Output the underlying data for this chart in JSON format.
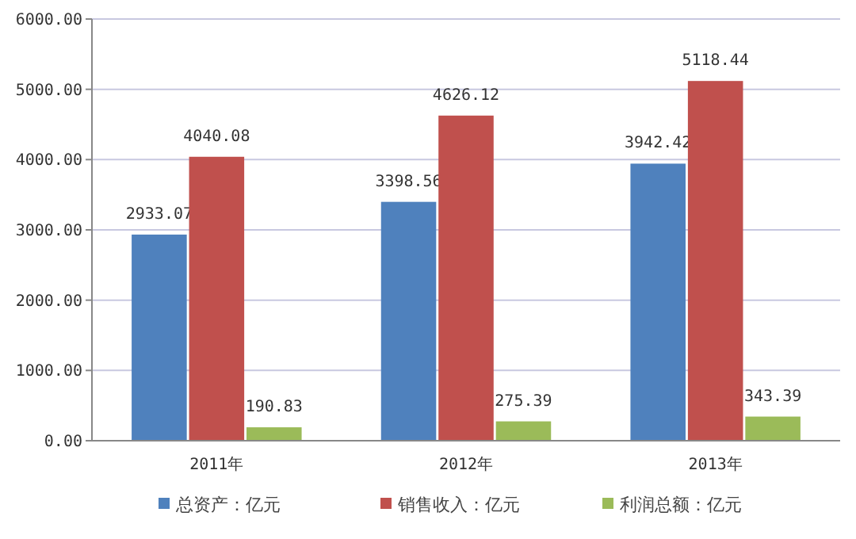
{
  "chart_data": {
    "type": "bar",
    "categories": [
      "2011年",
      "2012年",
      "2013年"
    ],
    "series": [
      {
        "name": "总资产：亿元",
        "color": "#4f81bd",
        "values": [
          2933.07,
          3398.56,
          3942.42
        ]
      },
      {
        "name": "销售收入：亿元",
        "color": "#c0504d",
        "values": [
          4040.08,
          4626.12,
          5118.44
        ]
      },
      {
        "name": "利润总额：亿元",
        "color": "#9bbb59",
        "values": [
          190.83,
          275.39,
          343.39
        ]
      }
    ],
    "ylim": [
      0,
      6000
    ],
    "yticks": [
      {
        "value": 0,
        "label": "0.00"
      },
      {
        "value": 1000,
        "label": "1000.00"
      },
      {
        "value": 2000,
        "label": "2000.00"
      },
      {
        "value": 3000,
        "label": "3000.00"
      },
      {
        "value": 4000,
        "label": "4000.00"
      },
      {
        "value": 5000,
        "label": "5000.00"
      },
      {
        "value": 6000,
        "label": "6000.00"
      }
    ],
    "grid": "y",
    "legend": "bottom",
    "data_labels": true
  }
}
